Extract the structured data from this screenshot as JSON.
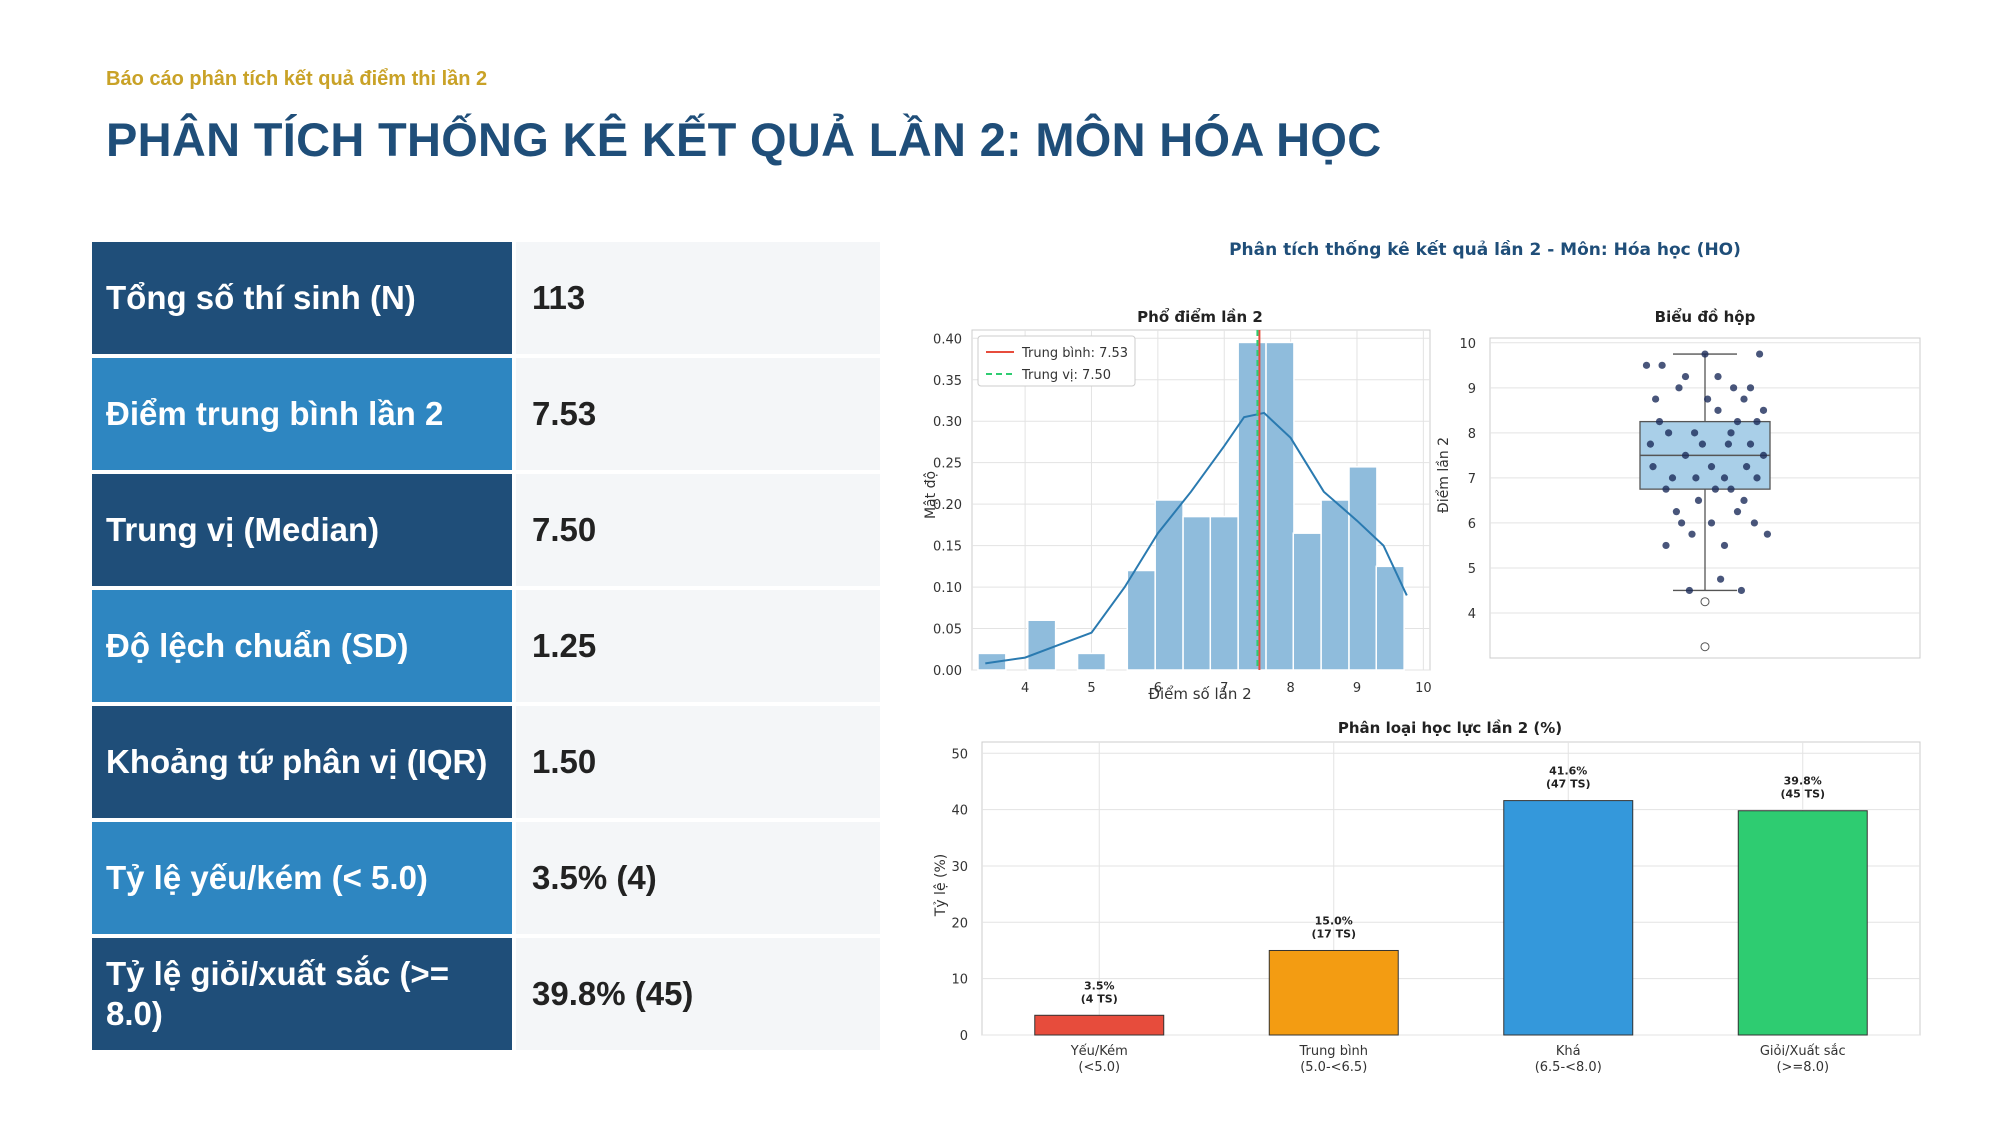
{
  "header": {
    "subtitle": "Báo cáo phân tích kết quả điểm thi lần 2",
    "title": "PHÂN TÍCH THỐNG KÊ KẾT QUẢ LẦN 2: MÔN HÓA HỌC"
  },
  "stats": [
    {
      "label": "Tổng số thí sinh (N)",
      "value": "113"
    },
    {
      "label": "Điểm trung bình lần 2",
      "value": "7.53"
    },
    {
      "label": "Trung vị (Median)",
      "value": "7.50"
    },
    {
      "label": "Độ lệch chuẩn (SD)",
      "value": "1.25"
    },
    {
      "label": "Khoảng tứ phân vị (IQR)",
      "value": "1.50"
    },
    {
      "label": "Tỷ lệ yếu/kém (< 5.0)",
      "value": "3.5% (4)"
    },
    {
      "label": "Tỷ lệ giỏi/xuất sắc (>= 8.0)",
      "value": "39.8% (45)"
    }
  ],
  "figure_title": "Phân tích thống kê kết quả lần 2 - Môn: Hóa học (HO)",
  "colors": {
    "navy": "#1f4e79",
    "blue": "#2e86c1",
    "gold": "#c9a227",
    "hist": "#8fbcdc",
    "kde": "#2a7ab0",
    "mean": "#e74c3c",
    "median": "#2ecc71"
  },
  "chart_data": [
    {
      "type": "bar",
      "title": "Phổ điểm lần 2",
      "xlabel": "Điểm số lần 2",
      "ylabel": "Mật độ",
      "xlim": [
        3.2,
        10.1
      ],
      "ylim": [
        0,
        0.41
      ],
      "xticks": [
        4,
        5,
        6,
        7,
        8,
        9,
        10
      ],
      "yticks": [
        0.0,
        0.05,
        0.1,
        0.15,
        0.2,
        0.25,
        0.3,
        0.35,
        0.4
      ],
      "bin_width": 0.42,
      "bins": [
        {
          "x": 3.5,
          "density": 0.02
        },
        {
          "x": 4.25,
          "density": 0.06
        },
        {
          "x": 5.0,
          "density": 0.02
        },
        {
          "x": 5.75,
          "density": 0.12
        },
        {
          "x": 6.17,
          "density": 0.205
        },
        {
          "x": 6.59,
          "density": 0.185
        },
        {
          "x": 7.0,
          "density": 0.185
        },
        {
          "x": 7.42,
          "density": 0.395
        },
        {
          "x": 7.84,
          "density": 0.395
        },
        {
          "x": 8.25,
          "density": 0.165
        },
        {
          "x": 8.67,
          "density": 0.205
        },
        {
          "x": 9.09,
          "density": 0.245
        },
        {
          "x": 9.5,
          "density": 0.125
        }
      ],
      "kde": [
        {
          "x": 3.4,
          "y": 0.008
        },
        {
          "x": 4.0,
          "y": 0.015
        },
        {
          "x": 4.5,
          "y": 0.03
        },
        {
          "x": 5.0,
          "y": 0.045
        },
        {
          "x": 5.5,
          "y": 0.1
        },
        {
          "x": 6.0,
          "y": 0.165
        },
        {
          "x": 6.5,
          "y": 0.215
        },
        {
          "x": 7.0,
          "y": 0.27
        },
        {
          "x": 7.3,
          "y": 0.305
        },
        {
          "x": 7.6,
          "y": 0.31
        },
        {
          "x": 8.0,
          "y": 0.28
        },
        {
          "x": 8.5,
          "y": 0.215
        },
        {
          "x": 9.0,
          "y": 0.18
        },
        {
          "x": 9.4,
          "y": 0.15
        },
        {
          "x": 9.75,
          "y": 0.09
        }
      ],
      "mean": 7.53,
      "median": 7.5,
      "legend": [
        "Trung bình: 7.53",
        "Trung vị: 7.50"
      ]
    },
    {
      "type": "box",
      "title": "Biểu đồ hộp",
      "ylabel": "Điểm lần 2",
      "ylim": [
        3,
        10
      ],
      "yticks": [
        4,
        5,
        6,
        7,
        8,
        9,
        10
      ],
      "q1": 6.75,
      "median": 7.5,
      "q3": 8.25,
      "whisker_low": 4.5,
      "whisker_high": 9.75,
      "outliers": [
        4.25,
        3.25
      ],
      "points": [
        {
          "x": -0.15,
          "y": 7.5
        },
        {
          "x": 0.05,
          "y": 7.25
        },
        {
          "x": 0.2,
          "y": 8.0
        },
        {
          "x": -0.3,
          "y": 6.75
        },
        {
          "x": 0.35,
          "y": 7.75
        },
        {
          "x": -0.05,
          "y": 6.5
        },
        {
          "x": 0.1,
          "y": 8.5
        },
        {
          "x": -0.2,
          "y": 9.0
        },
        {
          "x": 0.25,
          "y": 6.25
        },
        {
          "x": 0.0,
          "y": 9.75
        },
        {
          "x": -0.35,
          "y": 8.25
        },
        {
          "x": 0.4,
          "y": 7.0
        },
        {
          "x": -0.1,
          "y": 5.75
        },
        {
          "x": 0.15,
          "y": 5.5
        },
        {
          "x": -0.25,
          "y": 7.0
        },
        {
          "x": 0.3,
          "y": 8.75
        },
        {
          "x": -0.4,
          "y": 7.25
        },
        {
          "x": 0.45,
          "y": 8.5
        },
        {
          "x": 0.05,
          "y": 6.0
        },
        {
          "x": -0.15,
          "y": 9.25
        },
        {
          "x": 0.22,
          "y": 9.0
        },
        {
          "x": -0.3,
          "y": 5.5
        },
        {
          "x": 0.38,
          "y": 6.0
        },
        {
          "x": 0.12,
          "y": 4.75
        },
        {
          "x": -0.12,
          "y": 4.5
        },
        {
          "x": 0.28,
          "y": 4.5
        },
        {
          "x": 0.48,
          "y": 5.75
        },
        {
          "x": -0.45,
          "y": 9.5
        },
        {
          "x": 0.42,
          "y": 9.75
        },
        {
          "x": 0.35,
          "y": 9.0
        },
        {
          "x": -0.08,
          "y": 8.0
        },
        {
          "x": 0.18,
          "y": 7.75
        },
        {
          "x": -0.38,
          "y": 8.75
        },
        {
          "x": 0.08,
          "y": 6.75
        },
        {
          "x": -0.22,
          "y": 6.25
        },
        {
          "x": 0.32,
          "y": 7.25
        },
        {
          "x": -0.02,
          "y": 7.75
        },
        {
          "x": 0.25,
          "y": 8.25
        },
        {
          "x": -0.28,
          "y": 8.0
        },
        {
          "x": 0.15,
          "y": 7.0
        },
        {
          "x": 0.4,
          "y": 8.25
        },
        {
          "x": -0.18,
          "y": 6.0
        },
        {
          "x": 0.02,
          "y": 8.75
        },
        {
          "x": -0.42,
          "y": 7.75
        },
        {
          "x": 0.3,
          "y": 6.5
        },
        {
          "x": 0.1,
          "y": 9.25
        },
        {
          "x": -0.33,
          "y": 9.5
        },
        {
          "x": 0.2,
          "y": 6.75
        },
        {
          "x": -0.07,
          "y": 7.0
        },
        {
          "x": 0.45,
          "y": 7.5
        }
      ]
    },
    {
      "type": "bar",
      "title": "Phân loại học lực lần 2 (%)",
      "ylabel": "Tỷ lệ (%)",
      "ylim": [
        0,
        52
      ],
      "yticks": [
        0,
        10,
        20,
        30,
        40,
        50
      ],
      "categories": [
        [
          "Yếu/Kém",
          "(<5.0)"
        ],
        [
          "Trung bình",
          "(5.0-<6.5)"
        ],
        [
          "Khá",
          "(6.5-<8.0)"
        ],
        [
          "Giỏi/Xuất sắc",
          "(>=8.0)"
        ]
      ],
      "values": [
        3.5,
        15.0,
        41.6,
        39.8
      ],
      "labels": [
        [
          "3.5%",
          "(4 TS)"
        ],
        [
          "15.0%",
          "(17 TS)"
        ],
        [
          "41.6%",
          "(47 TS)"
        ],
        [
          "39.8%",
          "(45 TS)"
        ]
      ],
      "colors": [
        "#e74c3c",
        "#f39c12",
        "#3498db",
        "#2ecc71"
      ]
    }
  ]
}
